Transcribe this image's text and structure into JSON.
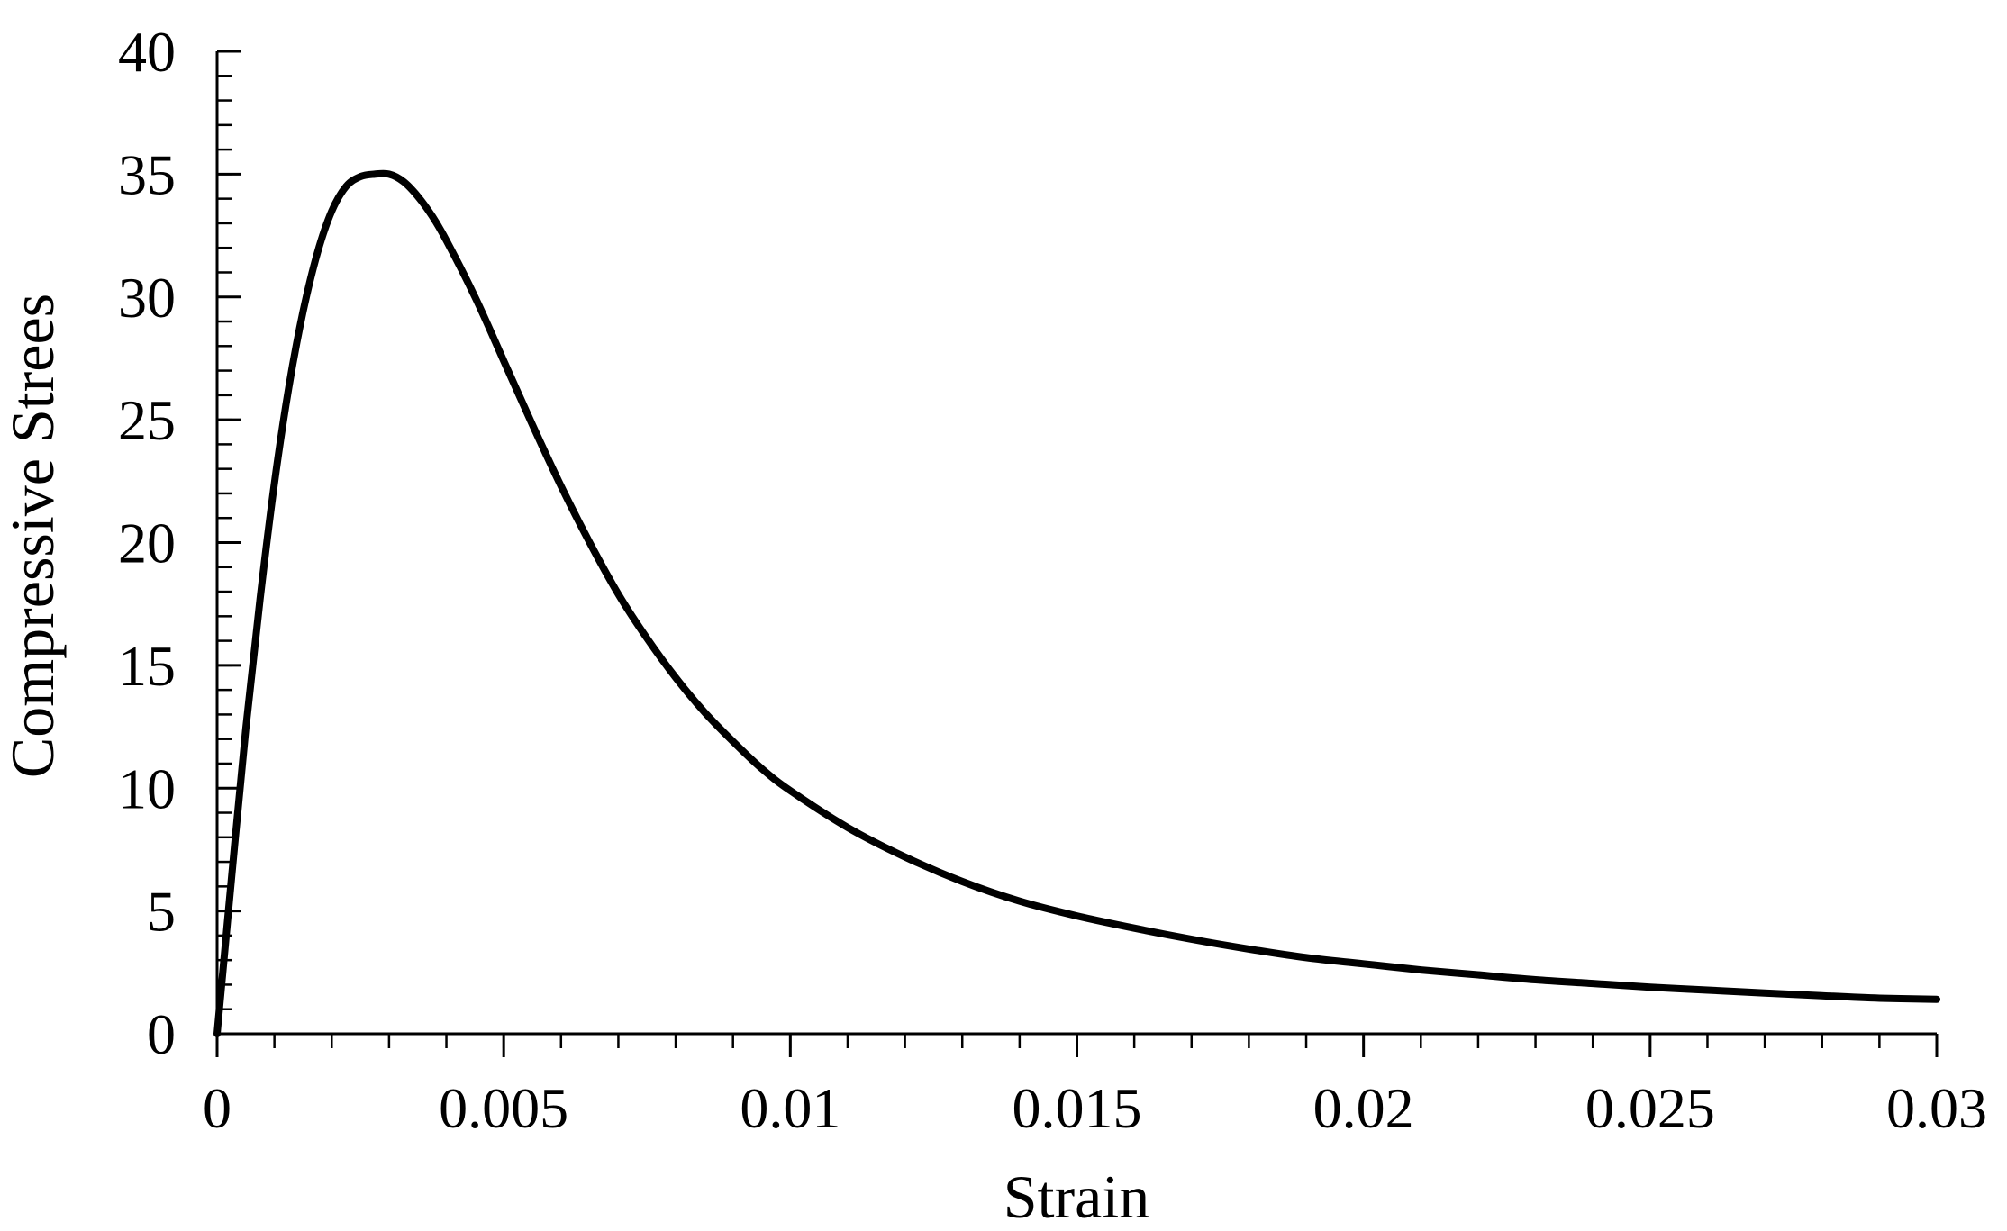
{
  "chart_data": {
    "type": "line",
    "title": "",
    "xlabel": "Strain",
    "ylabel": "Compressive Strees",
    "xlim": [
      0,
      0.03
    ],
    "ylim": [
      0,
      40
    ],
    "x_ticks": [
      0,
      0.005,
      0.01,
      0.015,
      0.02,
      0.025,
      0.03
    ],
    "x_tick_labels": [
      "0",
      "0.005",
      "0.01",
      "0.015",
      "0.02",
      "0.025",
      "0.03"
    ],
    "y_ticks": [
      0,
      5,
      10,
      15,
      20,
      25,
      30,
      35,
      40
    ],
    "y_tick_labels": [
      "0",
      "5",
      "10",
      "15",
      "20",
      "25",
      "30",
      "35",
      "40"
    ],
    "x_minor_step": 0.001,
    "y_minor_step": 1,
    "grid": false,
    "legend": "none",
    "line_color": "#000000",
    "series": [
      {
        "x": [
          0,
          0.00025,
          0.0005,
          0.00075,
          0.001,
          0.00125,
          0.0015,
          0.00175,
          0.002,
          0.00225,
          0.0025,
          0.00275,
          0.003,
          0.00325,
          0.0035,
          0.00375,
          0.004,
          0.0045,
          0.005,
          0.0055,
          0.006,
          0.0065,
          0.007,
          0.0075,
          0.008,
          0.0085,
          0.009,
          0.0095,
          0.01,
          0.011,
          0.012,
          0.013,
          0.014,
          0.015,
          0.016,
          0.017,
          0.018,
          0.019,
          0.02,
          0.021,
          0.022,
          0.023,
          0.024,
          0.025,
          0.026,
          0.027,
          0.028,
          0.029,
          0.03
        ],
        "values": [
          0,
          6.3,
          12.4,
          17.7,
          22.4,
          26.3,
          29.4,
          31.8,
          33.5,
          34.5,
          34.9,
          35.0,
          35.0,
          34.7,
          34.1,
          33.3,
          32.3,
          30.0,
          27.4,
          24.8,
          22.3,
          20.0,
          17.9,
          16.1,
          14.5,
          13.1,
          11.9,
          10.8,
          9.9,
          8.4,
          7.2,
          6.2,
          5.4,
          4.8,
          4.3,
          3.85,
          3.45,
          3.1,
          2.85,
          2.6,
          2.4,
          2.2,
          2.05,
          1.9,
          1.78,
          1.66,
          1.55,
          1.45,
          1.4
        ]
      }
    ]
  }
}
